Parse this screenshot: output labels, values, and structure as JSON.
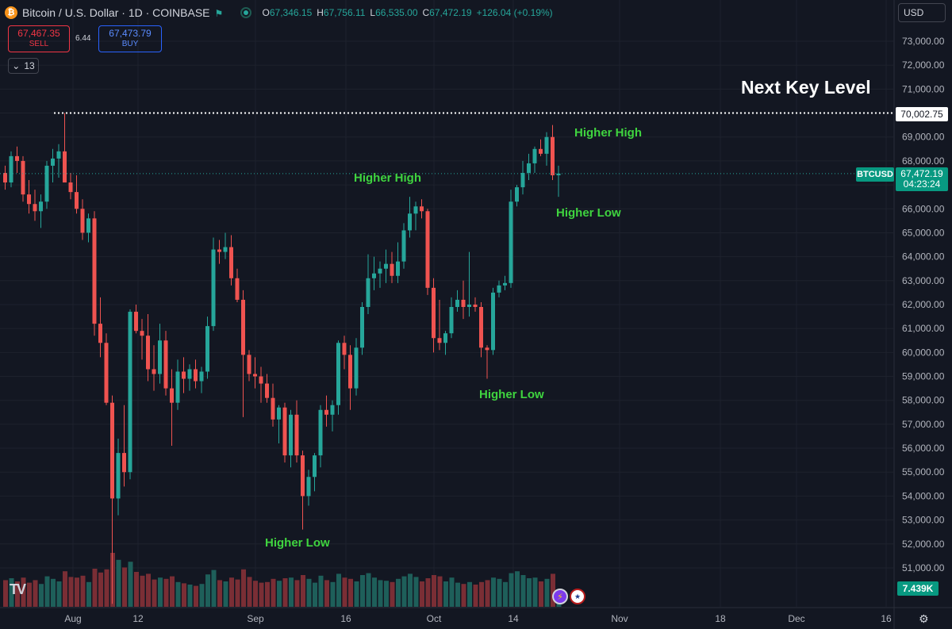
{
  "header": {
    "coin_glyph": "₿",
    "symbol": "Bitcoin / U.S. Dollar · 1D · COINBASE",
    "ohlc": [
      {
        "k": "O",
        "v": "67,346.15"
      },
      {
        "k": "H",
        "v": "67,756.11"
      },
      {
        "k": "L",
        "v": "66,535.00"
      },
      {
        "k": "C",
        "v": "67,472.19"
      }
    ],
    "change": "+126.04 (+0.19%)"
  },
  "trade": {
    "sell_price": "67,467.35",
    "sell_label": "SELL",
    "spread": "6.44",
    "buy_price": "67,473.79",
    "buy_label": "BUY"
  },
  "indicator_count": "13",
  "currency": "USD",
  "level_label": "70,002.75",
  "ticker_tag": "BTCUSD",
  "last_price": "67,472.19",
  "countdown": "04:23:24",
  "volume_label": "7.439K",
  "annotations": {
    "next_key_level": "Next Key Level",
    "hh1": "Higher High",
    "hh2": "Higher High",
    "hl1": "Higher Low",
    "hl2": "Higher Low",
    "hl3": "Higher Low"
  },
  "colors": {
    "up": "#26a69a",
    "down": "#ef5350",
    "vol_up": "#1e5f5a",
    "vol_down": "#7a2e35",
    "grid": "#1e222d"
  },
  "icons": {
    "settings": "gear-icon",
    "flag": "flag-icon",
    "brand": "tradingview-logo"
  },
  "chart_data": {
    "type": "candlestick",
    "y_axis": {
      "min": 50000,
      "max": 73000,
      "step": 1000,
      "labels": [
        "73,000.00",
        "72,000.00",
        "71,000.00",
        "70,000.00",
        "69,000.00",
        "68,000.00",
        "67,000.00",
        "66,000.00",
        "65,000.00",
        "64,000.00",
        "63,000.00",
        "62,000.00",
        "61,000.00",
        "60,000.00",
        "59,000.00",
        "58,000.00",
        "57,000.00",
        "56,000.00",
        "55,000.00",
        "54,000.00",
        "53,000.00",
        "52,000.00",
        "51,000.00"
      ]
    },
    "x_axis": {
      "labels": [
        "Aug",
        "12",
        "Sep",
        "16",
        "Oct",
        "14",
        "Nov",
        "18",
        "Dec",
        "16"
      ]
    },
    "key_level": 70002.75,
    "candles": [
      [
        67500,
        67800,
        66800,
        67100,
        4.2
      ],
      [
        67100,
        68400,
        66900,
        68200,
        4.5
      ],
      [
        68200,
        68600,
        67500,
        68000,
        4.0
      ],
      [
        68000,
        68200,
        66300,
        66600,
        4.6
      ],
      [
        66600,
        67200,
        65800,
        66200,
        3.8
      ],
      [
        66200,
        66800,
        65500,
        65900,
        4.2
      ],
      [
        65900,
        66600,
        65200,
        66300,
        3.6
      ],
      [
        66300,
        68000,
        66000,
        67800,
        4.8
      ],
      [
        67800,
        68500,
        67100,
        68100,
        4.4
      ],
      [
        68100,
        68700,
        67300,
        68400,
        4.0
      ],
      [
        68400,
        70000,
        67300,
        67100,
        5.6
      ],
      [
        67100,
        67500,
        66400,
        66700,
        4.7
      ],
      [
        66700,
        67400,
        65800,
        66000,
        4.6
      ],
      [
        66000,
        66400,
        64700,
        65000,
        4.9
      ],
      [
        65000,
        65800,
        64600,
        65600,
        3.9
      ],
      [
        65600,
        65900,
        60700,
        61200,
        6.0
      ],
      [
        61200,
        62300,
        59800,
        60400,
        5.4
      ],
      [
        60400,
        60800,
        57800,
        57900,
        5.9
      ],
      [
        57900,
        58200,
        49500,
        53900,
        8.5
      ],
      [
        53900,
        56400,
        53200,
        55800,
        7.4
      ],
      [
        55800,
        57800,
        54400,
        55000,
        6.2
      ],
      [
        55000,
        61800,
        54700,
        61700,
        7.1
      ],
      [
        61700,
        62000,
        60800,
        60900,
        5.5
      ],
      [
        60900,
        61400,
        59700,
        60700,
        4.9
      ],
      [
        60700,
        61600,
        58800,
        59300,
        5.2
      ],
      [
        59300,
        60300,
        58400,
        59100,
        4.3
      ],
      [
        59100,
        61200,
        58700,
        60500,
        4.6
      ],
      [
        60500,
        60900,
        58200,
        58500,
        4.4
      ],
      [
        58500,
        59300,
        56100,
        57900,
        4.8
      ],
      [
        57900,
        59700,
        57600,
        59200,
        3.9
      ],
      [
        59200,
        59800,
        58300,
        58900,
        3.7
      ],
      [
        58900,
        59500,
        58400,
        59300,
        3.5
      ],
      [
        59300,
        59700,
        58500,
        58800,
        3.3
      ],
      [
        58800,
        59400,
        58300,
        59200,
        3.6
      ],
      [
        59200,
        61500,
        58900,
        61100,
        5.1
      ],
      [
        61100,
        64800,
        60900,
        64300,
        5.8
      ],
      [
        64300,
        64700,
        63700,
        64200,
        4.2
      ],
      [
        64200,
        65000,
        63900,
        64400,
        4.0
      ],
      [
        64400,
        64900,
        62800,
        63100,
        4.6
      ],
      [
        63100,
        63500,
        62100,
        62200,
        4.3
      ],
      [
        62200,
        62600,
        57300,
        59900,
        5.9
      ],
      [
        59900,
        60100,
        58800,
        59100,
        4.7
      ],
      [
        59100,
        59800,
        58500,
        59000,
        4.1
      ],
      [
        59000,
        59400,
        57900,
        58700,
        3.8
      ],
      [
        58700,
        59100,
        57900,
        58100,
        3.9
      ],
      [
        58100,
        58700,
        56900,
        57200,
        4.4
      ],
      [
        57200,
        57800,
        56200,
        57700,
        4.1
      ],
      [
        57700,
        57900,
        55400,
        55700,
        4.5
      ],
      [
        55700,
        57600,
        55200,
        57400,
        4.6
      ],
      [
        57400,
        58000,
        55400,
        55700,
        4.2
      ],
      [
        55700,
        55900,
        52600,
        54000,
        5.0
      ],
      [
        54000,
        55100,
        53600,
        54800,
        4.4
      ],
      [
        54800,
        55800,
        54200,
        55700,
        3.8
      ],
      [
        55700,
        57800,
        55200,
        57600,
        4.9
      ],
      [
        57600,
        58200,
        56900,
        57400,
        4.2
      ],
      [
        57400,
        58000,
        56700,
        57800,
        3.9
      ],
      [
        57800,
        60500,
        57400,
        60400,
        5.2
      ],
      [
        60400,
        60700,
        59300,
        59900,
        4.6
      ],
      [
        59900,
        60300,
        57600,
        58500,
        4.4
      ],
      [
        58500,
        60600,
        58200,
        60200,
        4.0
      ],
      [
        60200,
        62100,
        59900,
        61900,
        5.0
      ],
      [
        61900,
        64100,
        61600,
        63100,
        5.3
      ],
      [
        63100,
        64000,
        62600,
        63300,
        4.6
      ],
      [
        63300,
        63800,
        62700,
        63500,
        4.2
      ],
      [
        63500,
        64300,
        62900,
        63700,
        4.1
      ],
      [
        63700,
        64200,
        62900,
        63200,
        3.9
      ],
      [
        63200,
        64600,
        62900,
        63800,
        4.4
      ],
      [
        63800,
        65400,
        63500,
        65100,
        4.8
      ],
      [
        65100,
        66500,
        64800,
        65800,
        5.2
      ],
      [
        65800,
        66300,
        65100,
        66100,
        4.7
      ],
      [
        66100,
        66400,
        65600,
        65900,
        4.0
      ],
      [
        65900,
        66000,
        62400,
        62700,
        4.5
      ],
      [
        62700,
        63100,
        60000,
        60600,
        5.0
      ],
      [
        60600,
        62200,
        60100,
        60400,
        4.8
      ],
      [
        60400,
        60900,
        59900,
        60800,
        4.0
      ],
      [
        60800,
        62300,
        60600,
        61900,
        4.6
      ],
      [
        61900,
        62600,
        61700,
        62200,
        3.8
      ],
      [
        62200,
        63000,
        61400,
        61900,
        3.6
      ],
      [
        61900,
        64200,
        61500,
        62000,
        3.9
      ],
      [
        62000,
        62300,
        61700,
        61900,
        3.5
      ],
      [
        61900,
        62100,
        59800,
        60200,
        3.9
      ],
      [
        60200,
        60300,
        58900,
        60100,
        4.2
      ],
      [
        60100,
        62700,
        59900,
        62500,
        4.6
      ],
      [
        62500,
        63000,
        62300,
        62800,
        4.4
      ],
      [
        62800,
        63200,
        62600,
        62900,
        3.9
      ],
      [
        62900,
        66800,
        62700,
        66300,
        5.3
      ],
      [
        66300,
        67000,
        66100,
        66900,
        5.6
      ],
      [
        66900,
        68000,
        66600,
        67500,
        5.0
      ],
      [
        67500,
        68300,
        67200,
        67900,
        4.5
      ],
      [
        67900,
        68600,
        67500,
        68500,
        4.6
      ],
      [
        68500,
        68900,
        68200,
        68300,
        4.0
      ],
      [
        68300,
        69200,
        67800,
        69000,
        4.4
      ],
      [
        69000,
        69500,
        67200,
        67400,
        5.2
      ],
      [
        67400,
        67800,
        66500,
        67472,
        2.6
      ]
    ]
  }
}
